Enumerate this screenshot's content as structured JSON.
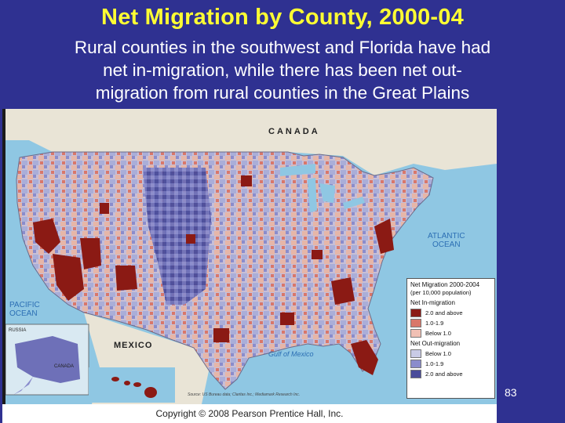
{
  "slide": {
    "title": "Net Migration by County, 2000-04",
    "subtitle_lines": [
      "Rural counties in the southwest and Florida have had",
      "net in-migration, while there has been net out-",
      "migration from rural counties in the Great Plains"
    ],
    "slide_number": "83",
    "copyright": "Copyright © 2008 Pearson Prentice Hall, Inc."
  },
  "map": {
    "labels": {
      "canada_top": "CANADA",
      "mexico": "MEXICO",
      "atlantic": [
        "ATLANTIC",
        "OCEAN"
      ],
      "pacific": [
        "PACIFIC",
        "OCEAN"
      ],
      "gulf": "Gulf of Mexico",
      "russia": "RUSSIA",
      "canada_inset": "CANADA",
      "source": "Source: US Bureau data; Claritas Inc.; Mediamark Research Inc."
    },
    "legend": {
      "title": "Net Migration 2000-2004",
      "subtitle": "(per 10,000 population)",
      "groups": [
        {
          "name": "Net In-migration",
          "items": [
            {
              "label": "2.0 and above",
              "color": "#8b1a14"
            },
            {
              "label": "1.0-1.9",
              "color": "#d9776a"
            },
            {
              "label": "Below 1.0",
              "color": "#f0c0b4"
            }
          ]
        },
        {
          "name": "Net Out-migration",
          "items": [
            {
              "label": "Below 1.0",
              "color": "#c9cbe6"
            },
            {
              "label": "1.0-1.9",
              "color": "#8a8ccc"
            },
            {
              "label": "2.0 and above",
              "color": "#4a4c9a"
            }
          ]
        }
      ]
    },
    "colors": {
      "background": "#2f3191",
      "title": "#ffff33",
      "water": "#8fc7e3",
      "land_other": "#e9e4d6"
    }
  }
}
